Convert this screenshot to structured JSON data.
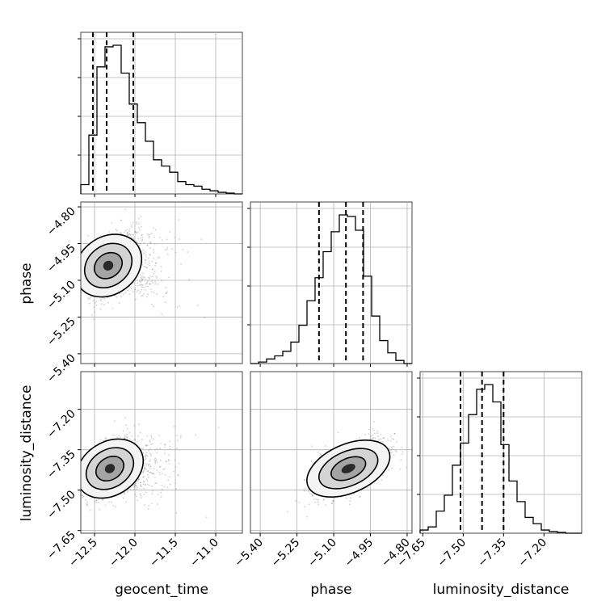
{
  "chart_data": {
    "type": "corner",
    "parameters": [
      "geocent_time",
      "phase",
      "luminosity_distance"
    ],
    "ranges": {
      "geocent_time": [
        -12.67,
        -10.67
      ],
      "phase": [
        -5.44,
        -4.78
      ],
      "luminosity_distance": [
        -7.66,
        -7.06
      ]
    },
    "ticks": {
      "geocent_time": [
        -12.5,
        -12.0,
        -11.5,
        -11.0
      ],
      "phase": [
        -5.4,
        -5.25,
        -5.1,
        -4.95,
        -4.8
      ],
      "luminosity_distance": [
        -7.65,
        -7.5,
        -7.35,
        -7.2
      ]
    },
    "tick_labels": {
      "geocent_time": [
        "−12.5",
        "−12.0",
        "−11.5",
        "−11.0"
      ],
      "phase": [
        "−5.40",
        "−5.25",
        "−5.10",
        "−4.95",
        "−4.80"
      ],
      "luminosity_distance": [
        "−7.65",
        "−7.50",
        "−7.35",
        "−7.20"
      ]
    },
    "quantiles": {
      "geocent_time": [
        -12.52,
        -12.35,
        -12.02
      ],
      "phase": [
        -5.16,
        -5.05,
        -4.98
      ],
      "luminosity_distance": [
        -7.51,
        -7.43,
        -7.35
      ]
    },
    "histograms": {
      "geocent_time": {
        "edges": [
          -12.67,
          -12.57,
          -12.47,
          -12.37,
          -12.27,
          -12.17,
          -12.07,
          -11.97,
          -11.87,
          -11.77,
          -11.67,
          -11.57,
          -11.47,
          -11.37,
          -11.27,
          -11.17,
          -11.07,
          -10.97,
          -10.87,
          -10.77,
          -10.67
        ],
        "counts": [
          0.06,
          0.38,
          0.82,
          0.95,
          0.96,
          0.78,
          0.58,
          0.46,
          0.34,
          0.22,
          0.18,
          0.14,
          0.08,
          0.06,
          0.05,
          0.03,
          0.02,
          0.01,
          0.005,
          0.0
        ]
      },
      "phase": {
        "edges": [
          -5.44,
          -5.407,
          -5.374,
          -5.341,
          -5.308,
          -5.275,
          -5.242,
          -5.209,
          -5.176,
          -5.143,
          -5.11,
          -5.077,
          -5.044,
          -5.011,
          -4.978,
          -4.945,
          -4.912,
          -4.879,
          -4.846,
          -4.813,
          -4.78
        ],
        "counts": [
          0.0,
          0.01,
          0.03,
          0.05,
          0.08,
          0.14,
          0.25,
          0.41,
          0.56,
          0.73,
          0.86,
          0.97,
          0.96,
          0.87,
          0.57,
          0.31,
          0.15,
          0.07,
          0.02,
          0.0
        ]
      },
      "luminosity_distance": {
        "edges": [
          -7.66,
          -7.63,
          -7.6,
          -7.57,
          -7.54,
          -7.51,
          -7.48,
          -7.45,
          -7.42,
          -7.39,
          -7.36,
          -7.33,
          -7.3,
          -7.27,
          -7.24,
          -7.21,
          -7.18,
          -7.15,
          -7.12,
          -7.09,
          -7.06
        ],
        "counts": [
          0.02,
          0.04,
          0.14,
          0.24,
          0.43,
          0.57,
          0.75,
          0.91,
          0.94,
          0.83,
          0.56,
          0.33,
          0.2,
          0.1,
          0.06,
          0.02,
          0.01,
          0.005,
          0.0,
          0.0
        ]
      }
    },
    "density_2d": {
      "phase_vs_geocent_time": {
        "center": [
          -12.33,
          -5.04
        ],
        "sigma": [
          0.16,
          0.065
        ],
        "rho": 0.6
      },
      "luminosity_distance_vs_geocent_time": {
        "center": [
          -12.31,
          -7.42
        ],
        "sigma": [
          0.16,
          0.055
        ],
        "rho": 0.55
      },
      "luminosity_distance_vs_phase": {
        "center": [
          -5.04,
          -7.42
        ],
        "sigma": [
          0.075,
          0.05
        ],
        "rho": 0.6
      }
    }
  }
}
